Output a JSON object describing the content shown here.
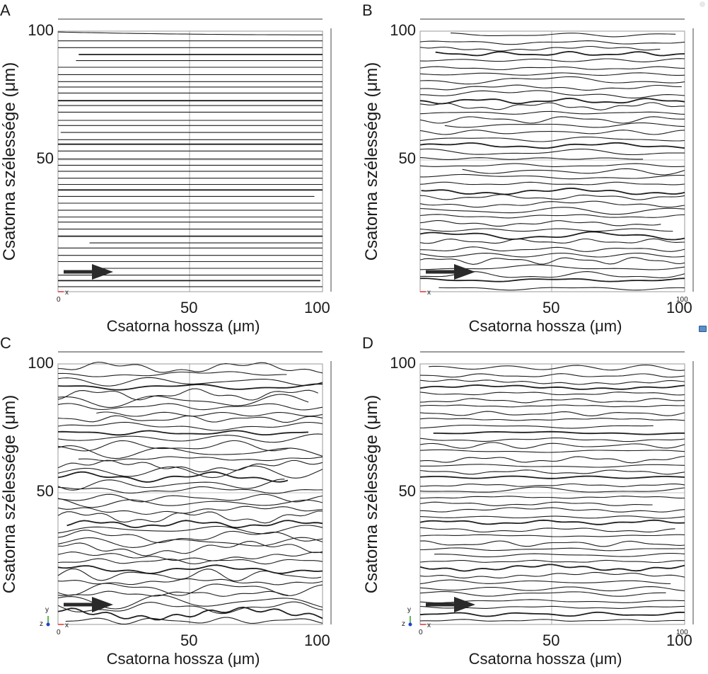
{
  "panels": [
    {
      "id": "A",
      "label": "A",
      "ylabel": "Csatorna szélessége (μm)",
      "xlabel": "Csatorna hossza (μm)",
      "yticks": [
        "100",
        "50"
      ],
      "xticks": [
        "50",
        "100"
      ],
      "origin": "0",
      "tick_right_small": "",
      "axis_x": "x",
      "axis_y": "",
      "axis_z": "",
      "roughness": 0.0,
      "seed": 3
    },
    {
      "id": "B",
      "label": "B",
      "ylabel": "Csatorna szélessége (μm)",
      "xlabel": "Csatorna hossza (μm)",
      "yticks": [
        "100",
        "50"
      ],
      "xticks": [
        "50",
        "100"
      ],
      "origin": "",
      "tick_right_small": "100",
      "axis_x": "x",
      "axis_y": "",
      "axis_z": "",
      "roughness": 0.55,
      "seed": 11
    },
    {
      "id": "C",
      "label": "C",
      "ylabel": "Csatorna szélessége (μm)",
      "xlabel": "Csatorna hossza (μm)",
      "yticks": [
        "100",
        "50"
      ],
      "xticks": [
        "50",
        "100"
      ],
      "origin": "0",
      "tick_right_small": "",
      "axis_x": "x",
      "axis_y": "y",
      "axis_z": "z",
      "roughness": 1.0,
      "seed": 27
    },
    {
      "id": "D",
      "label": "D",
      "ylabel": "Csatorna szélessége (μm)",
      "xlabel": "Csatorna hossza (μm)",
      "yticks": [
        "100",
        "50"
      ],
      "xticks": [
        "50",
        "100"
      ],
      "origin": "0",
      "tick_right_small": "100",
      "axis_x": "x",
      "axis_y": "y",
      "axis_z": "z",
      "roughness": 0.45,
      "seed": 41
    }
  ],
  "colors": {
    "line": "#1e1e1e",
    "arrow": "#2a2a2a",
    "frame": "#7a7a7a",
    "axis_x": "#e03030",
    "axis_y": "#2aa02a",
    "axis_z": "#2040d0"
  }
}
